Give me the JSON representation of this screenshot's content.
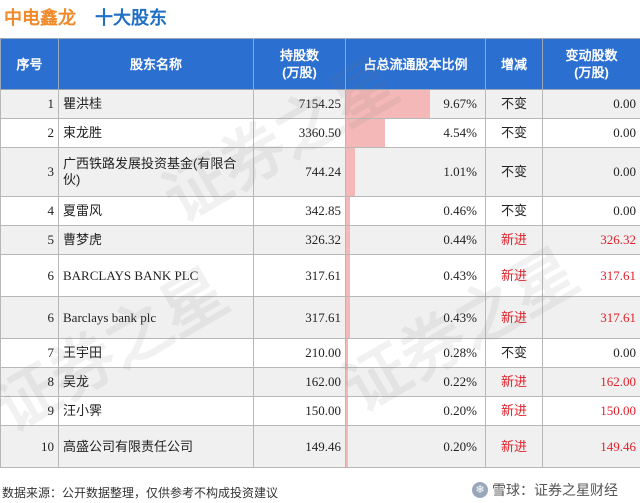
{
  "header": {
    "stock_name": "中电鑫龙",
    "title": "十大股东"
  },
  "columns": [
    "序号",
    "股东名称",
    "持股数\n(万股)",
    "占总流通股本比例",
    "增减",
    "变动股数\n(万股)"
  ],
  "rows": [
    {
      "idx": "1",
      "name": "瞿洪桂",
      "shares": "7154.25",
      "ratio": "9.67%",
      "ratio_value": 9.67,
      "change": "不变",
      "delta": "0.00",
      "is_new": false,
      "latin": false
    },
    {
      "idx": "2",
      "name": "束龙胜",
      "shares": "3360.50",
      "ratio": "4.54%",
      "ratio_value": 4.54,
      "change": "不变",
      "delta": "0.00",
      "is_new": false,
      "latin": false
    },
    {
      "idx": "3",
      "name": "广西铁路发展投资基金(有限合伙)",
      "shares": "744.24",
      "ratio": "1.01%",
      "ratio_value": 1.01,
      "change": "不变",
      "delta": "0.00",
      "is_new": false,
      "latin": false
    },
    {
      "idx": "4",
      "name": "夏雷风",
      "shares": "342.85",
      "ratio": "0.46%",
      "ratio_value": 0.46,
      "change": "不变",
      "delta": "0.00",
      "is_new": false,
      "latin": false
    },
    {
      "idx": "5",
      "name": "曹梦虎",
      "shares": "326.32",
      "ratio": "0.44%",
      "ratio_value": 0.44,
      "change": "新进",
      "delta": "326.32",
      "is_new": true,
      "latin": false
    },
    {
      "idx": "6",
      "name": "BARCLAYS BANK PLC",
      "shares": "317.61",
      "ratio": "0.43%",
      "ratio_value": 0.43,
      "change": "新进",
      "delta": "317.61",
      "is_new": true,
      "latin": true
    },
    {
      "idx": "6",
      "name": "Barclays bank plc",
      "shares": "317.61",
      "ratio": "0.43%",
      "ratio_value": 0.43,
      "change": "新进",
      "delta": "317.61",
      "is_new": true,
      "latin": true
    },
    {
      "idx": "7",
      "name": "王宇田",
      "shares": "210.00",
      "ratio": "0.28%",
      "ratio_value": 0.28,
      "change": "不变",
      "delta": "0.00",
      "is_new": false,
      "latin": false
    },
    {
      "idx": "8",
      "name": "吴龙",
      "shares": "162.00",
      "ratio": "0.22%",
      "ratio_value": 0.22,
      "change": "新进",
      "delta": "162.00",
      "is_new": true,
      "latin": false
    },
    {
      "idx": "9",
      "name": "汪小霁",
      "shares": "150.00",
      "ratio": "0.20%",
      "ratio_value": 0.2,
      "change": "新进",
      "delta": "150.00",
      "is_new": true,
      "latin": false
    },
    {
      "idx": "10",
      "name": "高盛公司有限责任公司",
      "shares": "149.46",
      "ratio": "0.20%",
      "ratio_value": 0.2,
      "change": "新进",
      "delta": "149.46",
      "is_new": true,
      "latin": false
    }
  ],
  "ratio_bar_max": 16,
  "footer": {
    "source": "数据来源：公开数据整理，仅供参考不构成投资建议",
    "brand": "雪球：证券之星财经"
  },
  "watermark": "证券之星",
  "colors": {
    "header_bg": "#2b6fd1",
    "stock_name": "#f08a2b",
    "title": "#1f6fc5",
    "new_text": "#e0202a",
    "ratio_bar": "#f5b8b8",
    "row_alt": "#f0f0f0"
  }
}
